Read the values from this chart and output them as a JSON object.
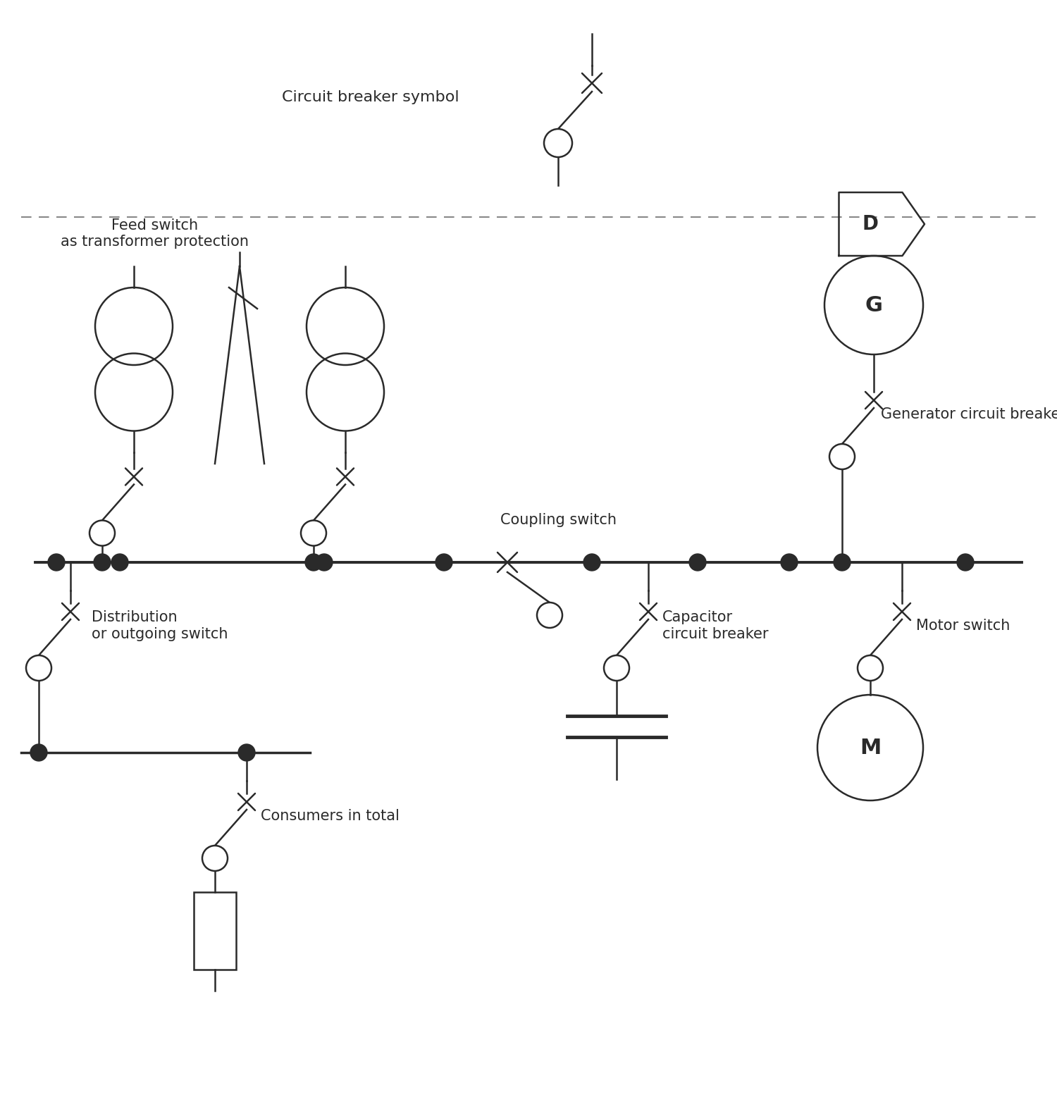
{
  "bg_color": "#ffffff",
  "line_color": "#2a2a2a",
  "text_color": "#2a2a2a",
  "fig_width": 15.0,
  "fig_height": 15.88,
  "dpi": 100,
  "xmin": 0,
  "xmax": 150,
  "ymin": 0,
  "ymax": 158.8,
  "dash_y": 128.0,
  "bus_y": 79.0,
  "bus_x1": 5.0,
  "bus_x2": 145.0,
  "cb_top_label": "Circuit breaker symbol",
  "feed_label_line1": "Feed switch",
  "feed_label_line2": "as transformer protection",
  "gen_label": "Generator circuit breaker",
  "coupling_label": "Coupling switch",
  "dist_label_line1": "Distribution",
  "dist_label_line2": "or outgoing switch",
  "cap_label_line1": "Capacitor",
  "cap_label_line2": "circuit breaker",
  "motor_label": "Motor switch",
  "consumer_label": "Consumers in total"
}
